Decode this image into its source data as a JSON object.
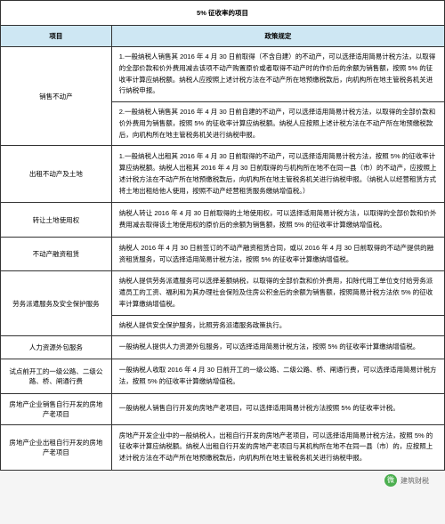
{
  "title": "5% 征收率的项目",
  "headers": {
    "item": "项目",
    "policy": "政策规定"
  },
  "rows": [
    {
      "item": "销售不动产",
      "cells": [
        "1.一般纳税人销售其 2016 年 4 月 30 日前取得（不含自建）的不动产，可以选择适用简易计税方法，以取得的全部价款和价外费用减去该项不动产购置原价或者取得不动产时的作价后的余额为销售额，按照 5% 的征收率计算应纳税额。纳税人应按照上述计税方法在不动产所在地预缴税款后，向机构所在地主管税务机关进行纳税申报。",
        "2.一般纳税人销售其 2016 年 4 月 30 日前自建的不动产，可以选择适用简易计税方法，以取得的全部价款和价外费用为销售额，按照 5% 的征收率计算应纳税额。纳税人应按照上述计税方法在不动产所在地预缴税款后，向机构所在地主管税务机关进行纳税申报。"
      ]
    },
    {
      "item": "出租不动产及土地",
      "cells": [
        "1.一般纳税人出租其 2016 年 4 月 30 日前取得的不动产，可以选择适用简易计税方法，按照 5% 的征收率计算应纳税额。纳税人出租其 2016 年 4 月 30 日前取得的与机构所在地不在同一县（市）的不动产，应按照上述计税方法在不动产所在地预缴税款后，向机构所在地主管税务机关进行纳税申报。（纳税人以经营租赁方式将土地出租给他人使用，按照不动产经营租赁服务缴纳增值税。）"
      ]
    },
    {
      "item": "转让土地使用权",
      "cells": [
        "纳税人转让 2016 年 4 月 30 日前取得的土地使用权，可以选择适用简易计税方法，以取得的全部价款和价外费用减去取得该土地使用权的原价后的余额为销售额，按照 5% 的征收率计算缴纳增值税。"
      ]
    },
    {
      "item": "不动产融资租赁",
      "cells": [
        "纳税人 2016 年 4 月 30 日前签订的不动产融资租赁合同，或以 2016 年 4 月 30 日前取得的不动产提供的融资租赁服务，可以选择适用简易计税方法，按照 5% 的征收率计算缴纳增值税。"
      ]
    },
    {
      "item": "劳务派遣服务及安全保护服务",
      "cells": [
        "纳税人提供劳务派遣服务可以选择差额纳税，以取得的全部价款和价外费用，扣除代用工单位支付给劳务派遣员工的工资、福利和为其办理社会保险及住房公积金后的余额为销售额，按照简易计税方法依 5% 的征收率计算缴纳增值税。",
        "纳税人提供安全保护服务，比照劳务派遣服务政策执行。"
      ]
    },
    {
      "item": "人力资源外包服务",
      "cells": [
        "一般纳税人提供人力资源外包服务，可以选择适用简易计税方法，按照 5% 的征收率计算缴纳增值税。"
      ]
    },
    {
      "item": "试点前开工的一级公路、二级公路、桥、闸通行费",
      "cells": [
        "一般纳税人收取 2016 年 4 月 30 日前开工的一级公路、二级公路、桥、闸通行费，可以选择适用简易计税方法，按照 5% 的征收率计算缴纳增值税。"
      ]
    },
    {
      "item": "房地产企业销售自行开发的房地产老项目",
      "cells": [
        "一般纳税人销售自行开发的房地产老项目，可以选择适用简易计税方法按照 5% 的征收率计税。"
      ]
    },
    {
      "item": "房地产企业出租自行开发的房地产老项目",
      "cells": [
        "房地产开发企业中的一般纳税人，出租自行开发的房地产老项目，可以选择适用简易计税方法，按照 5% 的征收率计算应纳税额。纳税人出租自行开发的房地产老项目与其机构所在地不在同一县（市）的，应按照上述计税方法在不动产所在地预缴税款后，向机构所在地主管税务机关进行纳税申报。"
      ]
    }
  ],
  "footer": {
    "icon": "微",
    "label": "建筑财税"
  },
  "styles": {
    "header_bg": "#cee7f3",
    "border_color": "#333333",
    "text_color": "#000000",
    "body_bg": "#f5f5f5",
    "font_size_base": 7.5,
    "line_height": 1.7,
    "item_col_width_pct": 25,
    "policy_col_width_pct": 75
  }
}
